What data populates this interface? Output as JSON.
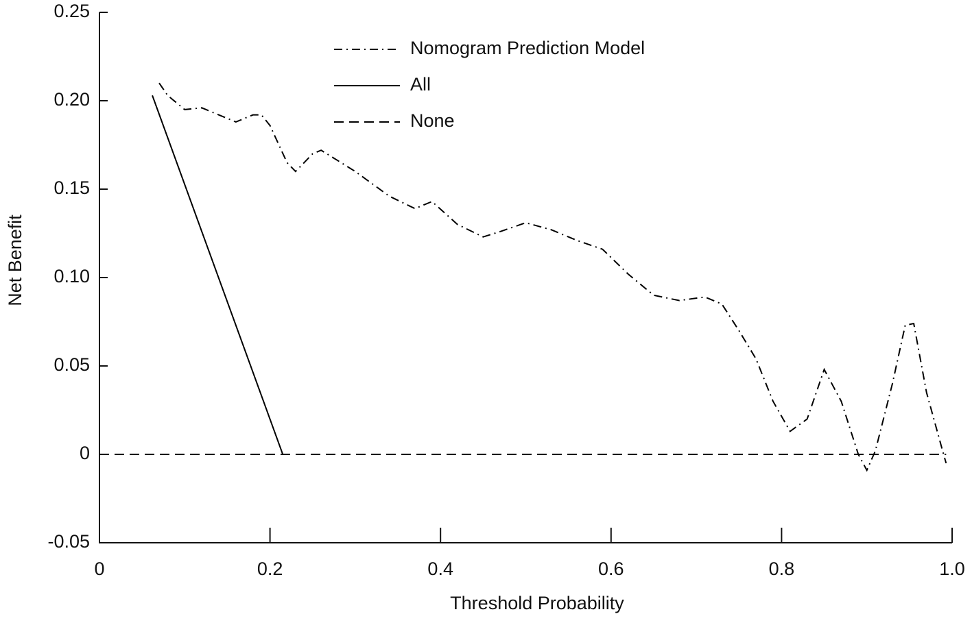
{
  "chart_data": {
    "type": "line",
    "x_label": "Threshold Probability",
    "y_label": "Net Benefit",
    "xlim": [
      0,
      1
    ],
    "ylim": [
      -0.05,
      0.25
    ],
    "xticks": [
      0,
      0.2,
      0.4,
      0.6,
      0.8,
      {
        "value": 1,
        "label": "1.0"
      }
    ],
    "yticks": [
      -0.05,
      0,
      0.05,
      {
        "value": 0.1,
        "label": "0.10"
      },
      0.15,
      {
        "value": 0.2,
        "label": "0.20"
      },
      0.25
    ],
    "legend": "top-center",
    "series": [
      {
        "name": "Nomogram Prediction Model",
        "color": "#000000",
        "linestyle": "dashdot",
        "x": [
          0.07,
          0.08,
          0.1,
          0.12,
          0.14,
          0.16,
          0.18,
          0.19,
          0.2,
          0.22,
          0.23,
          0.25,
          0.26,
          0.3,
          0.34,
          0.37,
          0.39,
          0.42,
          0.45,
          0.47,
          0.5,
          0.53,
          0.56,
          0.59,
          0.62,
          0.65,
          0.68,
          0.71,
          0.73,
          0.75,
          0.77,
          0.79,
          0.81,
          0.83,
          0.85,
          0.87,
          0.89,
          0.9,
          0.91,
          0.93,
          0.945,
          0.955,
          0.97,
          0.99,
          0.993
        ],
        "values": [
          0.21,
          0.203,
          0.195,
          0.196,
          0.192,
          0.188,
          0.192,
          0.192,
          0.186,
          0.165,
          0.16,
          0.17,
          0.172,
          0.16,
          0.146,
          0.139,
          0.143,
          0.13,
          0.123,
          0.126,
          0.131,
          0.127,
          0.121,
          0.116,
          0.102,
          0.09,
          0.087,
          0.089,
          0.085,
          0.07,
          0.054,
          0.03,
          0.013,
          0.02,
          0.048,
          0.03,
          0.0,
          -0.009,
          0.002,
          0.04,
          0.073,
          0.074,
          0.035,
          0.0,
          -0.005
        ]
      },
      {
        "name": "All",
        "color": "#000000",
        "linestyle": "solid",
        "x": [
          0.062,
          0.215
        ],
        "values": [
          0.203,
          0
        ]
      },
      {
        "name": "None",
        "color": "#000000",
        "linestyle": "dashed",
        "x": [
          0,
          0.993
        ],
        "values": [
          0,
          0
        ]
      }
    ]
  }
}
